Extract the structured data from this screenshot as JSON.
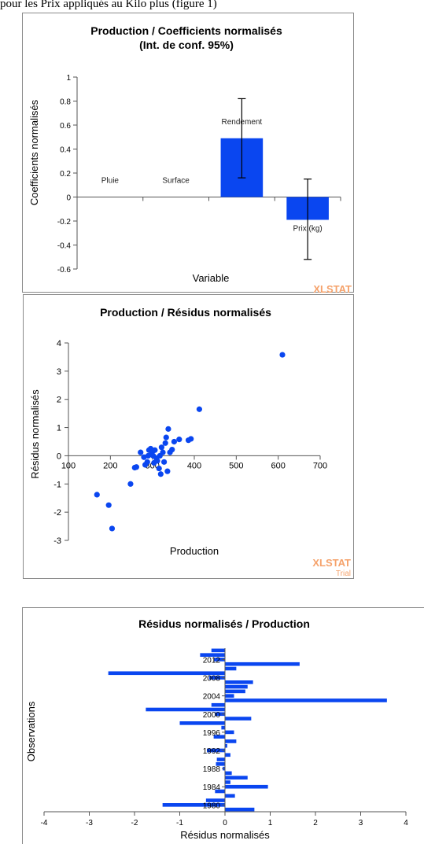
{
  "caption": "pour les Prix appliqués au Kilo plus (figure 1)",
  "watermark": {
    "brand": "XLSTAT",
    "sub": "Trial",
    "color": "#F5A26B"
  },
  "charts": [
    {
      "type": "bar",
      "title_lines": [
        "Production / Coefficients normalisés",
        "(Int. de conf. 95%)"
      ],
      "xlabel": "Variable",
      "ylabel": "Coefficients normalisés",
      "ylim": [
        -0.6,
        1
      ],
      "yticks": [
        "-0.6",
        "-0.4",
        "-0.2",
        "0",
        "0.2",
        "0.4",
        "0.6",
        "0.8",
        "1"
      ],
      "categories": [
        "Pluie",
        "Surface",
        "Rendement",
        "Prix (kg)"
      ],
      "values": [
        0,
        0,
        0.49,
        -0.19
      ],
      "ci_low": [
        null,
        null,
        0.16,
        -0.52
      ],
      "ci_high": [
        null,
        null,
        0.82,
        0.15
      ],
      "bar_color": "#0A46F0",
      "grid": false
    },
    {
      "type": "scatter",
      "title": "Production / Résidus normalisés",
      "xlabel": "Production",
      "ylabel": "Résidus normalisés",
      "xlim": [
        100,
        700
      ],
      "ylim": [
        -3,
        4
      ],
      "xticks": [
        "100",
        "200",
        "300",
        "400",
        "500",
        "600",
        "700"
      ],
      "yticks": [
        "-3",
        "-2",
        "-1",
        "0",
        "1",
        "2",
        "3",
        "4"
      ],
      "color": "#0A46F0",
      "points": [
        [
          168,
          -1.38
        ],
        [
          196,
          -1.75
        ],
        [
          204,
          -2.58
        ],
        [
          248,
          -1.0
        ],
        [
          258,
          -0.42
        ],
        [
          262,
          -0.4
        ],
        [
          272,
          0.12
        ],
        [
          280,
          -0.05
        ],
        [
          283,
          -0.32
        ],
        [
          288,
          -0.22
        ],
        [
          290,
          0.0
        ],
        [
          292,
          0.2
        ],
        [
          296,
          0.25
        ],
        [
          298,
          0.05
        ],
        [
          300,
          0.15
        ],
        [
          302,
          0.0
        ],
        [
          304,
          -0.25
        ],
        [
          306,
          0.2
        ],
        [
          309,
          -0.08
        ],
        [
          312,
          -0.18
        ],
        [
          316,
          -0.45
        ],
        [
          318,
          0.0
        ],
        [
          320,
          -0.65
        ],
        [
          322,
          0.3
        ],
        [
          325,
          0.12
        ],
        [
          328,
          -0.22
        ],
        [
          331,
          0.45
        ],
        [
          333,
          0.65
        ],
        [
          336,
          -0.55
        ],
        [
          338,
          0.95
        ],
        [
          342,
          0.12
        ],
        [
          347,
          0.22
        ],
        [
          352,
          0.5
        ],
        [
          364,
          0.58
        ],
        [
          386,
          0.55
        ],
        [
          392,
          0.6
        ],
        [
          412,
          1.65
        ],
        [
          610,
          3.58
        ]
      ],
      "grid": false
    },
    {
      "type": "bar",
      "orientation": "horizontal",
      "title": "Résidus normalisés / Production",
      "xlabel": "Résidus normalisés",
      "ylabel": "Observations",
      "xlim": [
        -4,
        4
      ],
      "xticks": [
        "-4",
        "-3",
        "-2",
        "-1",
        "0",
        "1",
        "2",
        "3",
        "4"
      ],
      "year_labels": [
        "1980",
        "1984",
        "1988",
        "1992",
        "1996",
        "2000",
        "2004",
        "2008",
        "2012"
      ],
      "years": [
        1979,
        1980,
        1981,
        1982,
        1983,
        1984,
        1985,
        1986,
        1987,
        1988,
        1989,
        1990,
        1991,
        1992,
        1993,
        1994,
        1995,
        1996,
        1997,
        1998,
        1999,
        2000,
        2001,
        2002,
        2003,
        2004,
        2005,
        2006,
        2007,
        2008,
        2009,
        2010,
        2011,
        2012,
        2013,
        2014
      ],
      "values": [
        0.65,
        -1.38,
        -0.42,
        0.22,
        -0.22,
        0.95,
        0.12,
        0.5,
        0.15,
        -0.05,
        -0.2,
        -0.18,
        0.12,
        -0.4,
        0.05,
        0.25,
        -0.25,
        0.2,
        -0.08,
        -1.0,
        0.58,
        -0.22,
        -1.75,
        -0.3,
        3.58,
        0.2,
        0.45,
        0.5,
        0.62,
        -0.35,
        -2.58,
        0.25,
        1.65,
        -0.25,
        -0.55,
        -0.3
      ],
      "color": "#0A46F0",
      "grid": false
    }
  ]
}
